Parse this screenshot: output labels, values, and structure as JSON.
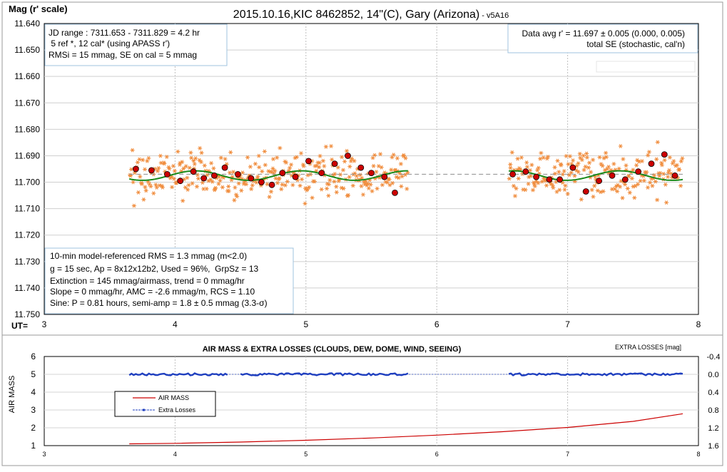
{
  "header": {
    "ylabel": "Mag (r' scale)",
    "title_main": "2015.10.16,KIC 8462852, 14\"(C), Gary (Arizona)",
    "title_suffix": " - v5A16",
    "ut_label": "UT="
  },
  "info_box_top_left": [
    "JD range : 7311.653 - 7311.829 = 4.2 hr",
    " 5 ref *, 12 cal* (using APASS r')",
    "RMSi = 15 mmag, SE on cal = 5 mmag"
  ],
  "info_box_top_right": [
    "Data avg r' = 11.697 ± 0.005 (0.000, 0.005)",
    "total SE (stochastic, cal'n)"
  ],
  "info_box_bottom_left": [
    "10-min model-referenced RMS = 1.3 mmag (m<2.0)",
    "g = 15 sec, Ap = 8x12x12b2, Used = 96%,  GrpSz = 13",
    "Extinction = 145 mmag/airmass, trend = 0 mmag/hr",
    "Slope = 0 mmag/hr, AMC = -2.6 mmag/m, RCS = 1.10",
    "Sine: P = 0.81 hours, semi-amp = 1.8 ± 0.5 mmag (3.3-σ)"
  ],
  "lower_panel": {
    "title": "AIR MASS & EXTRA LOSSES (CLOUDS, DEW, DOME, WIND, SEEING)",
    "y2_title": "EXTRA LOSSES [mag]",
    "ylabel": "AIR MASS",
    "legend": [
      "AIR MASS",
      "Extra Losses"
    ]
  },
  "colors": {
    "points": "#f08c3c",
    "binned": "#cc0000",
    "model": "#1a8a1a",
    "avg_line": "#999999",
    "airmass": "#cc0000",
    "losses": "#1f3fbf"
  },
  "chart_data": [
    {
      "type": "scatter",
      "title": "2015.10.16,KIC 8462852, 14\"(C), Gary (Arizona) - v5A16",
      "ylabel": "Mag (r' scale)",
      "xlabel": "UT=",
      "xlim": [
        3,
        8
      ],
      "ylim": [
        11.75,
        11.64
      ],
      "y_inverted": true,
      "x_ticks": [
        3,
        4,
        5,
        6,
        7,
        8
      ],
      "y_ticks": [
        11.64,
        11.65,
        11.66,
        11.67,
        11.68,
        11.69,
        11.7,
        11.71,
        11.72,
        11.73,
        11.74,
        11.75
      ],
      "grid": true,
      "average_mag": 11.697,
      "sine_model": {
        "offset": 11.6975,
        "semi_amp": 0.0018,
        "period_hr": 0.81
      },
      "series": [
        {
          "name": "10-min averages",
          "x": [
            3.7,
            3.82,
            3.94,
            4.04,
            4.14,
            4.22,
            4.3,
            4.38,
            4.48,
            4.58,
            4.66,
            4.74,
            4.82,
            4.92,
            5.02,
            5.12,
            5.22,
            5.32,
            5.42,
            5.5,
            5.6,
            5.68,
            6.58,
            6.68,
            6.76,
            6.86,
            6.94,
            7.04,
            7.14,
            7.24,
            7.34,
            7.44,
            7.54,
            7.64,
            7.74,
            7.82
          ],
          "y": [
            11.695,
            11.6955,
            11.697,
            11.6995,
            11.696,
            11.6985,
            11.6975,
            11.6945,
            11.697,
            11.6985,
            11.7,
            11.701,
            11.6965,
            11.698,
            11.692,
            11.6965,
            11.693,
            11.69,
            11.6945,
            11.6965,
            11.698,
            11.704,
            11.697,
            11.696,
            11.698,
            11.699,
            11.699,
            11.6945,
            11.7035,
            11.6995,
            11.6975,
            11.699,
            11.696,
            11.693,
            11.6895,
            11.6975
          ]
        }
      ],
      "observations": {
        "x_ranges": [
          [
            3.65,
            5.78
          ],
          [
            6.55,
            7.88
          ]
        ],
        "y_center": 11.697,
        "y_spread": 0.008
      }
    },
    {
      "type": "line",
      "title": "AIR MASS & EXTRA LOSSES (CLOUDS, DEW, DOME, WIND, SEEING)",
      "xlim": [
        3,
        8
      ],
      "ylim": [
        1,
        6
      ],
      "y2lim": [
        -0.4,
        1.6
      ],
      "y2_inverted": true,
      "x_ticks": [
        3,
        4,
        5,
        6,
        7,
        8
      ],
      "y_ticks": [
        1,
        2,
        3,
        4,
        5,
        6
      ],
      "y2_ticks": [
        -0.4,
        0.0,
        0.4,
        0.8,
        1.2,
        1.6
      ],
      "series": [
        {
          "name": "AIR MASS",
          "x": [
            3.65,
            4.0,
            4.5,
            5.0,
            5.5,
            6.0,
            6.5,
            7.0,
            7.5,
            7.88
          ],
          "y": [
            1.1,
            1.13,
            1.2,
            1.3,
            1.43,
            1.59,
            1.78,
            2.02,
            2.36,
            2.79
          ]
        },
        {
          "name": "Extra Losses",
          "x": [
            3.65,
            4.4,
            4.5,
            5.78,
            6.55,
            7.88
          ],
          "y2": [
            0.01,
            0.0,
            0.0,
            0.0,
            0.0,
            0.0
          ],
          "gaps": [
            [
              4.4,
              4.5
            ],
            [
              5.78,
              6.55
            ]
          ]
        }
      ]
    }
  ]
}
